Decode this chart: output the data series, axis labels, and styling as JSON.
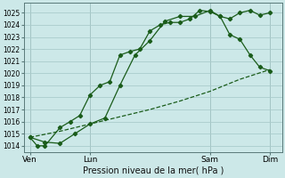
{
  "background_color": "#cce8e8",
  "grid_color": "#aacccc",
  "line_color": "#1a5c1a",
  "title": "Pression niveau de la mer( hPa )",
  "ylim": [
    1013.5,
    1025.8
  ],
  "yticks": [
    1014,
    1015,
    1016,
    1017,
    1018,
    1019,
    1020,
    1021,
    1022,
    1023,
    1024,
    1025
  ],
  "xlim": [
    -0.1,
    4.2
  ],
  "xtick_labels": [
    "Ven",
    "Lun",
    "Sam",
    "Dim"
  ],
  "xtick_positions": [
    0.0,
    1.0,
    3.0,
    4.0
  ],
  "series1_x": [
    0.0,
    0.12,
    0.25,
    0.5,
    0.67,
    0.83,
    1.0,
    1.17,
    1.33,
    1.5,
    1.67,
    1.83,
    2.0,
    2.17,
    2.33,
    2.5,
    2.67,
    2.83,
    3.0,
    3.17,
    3.33,
    3.5,
    3.67,
    3.83,
    4.0
  ],
  "series1_y": [
    1014.7,
    1014.0,
    1014.0,
    1015.5,
    1016.0,
    1016.5,
    1018.2,
    1019.0,
    1019.3,
    1021.5,
    1021.8,
    1022.0,
    1023.5,
    1024.0,
    1024.2,
    1024.2,
    1024.5,
    1025.2,
    1025.1,
    1024.7,
    1024.5,
    1025.0,
    1025.2,
    1024.8,
    1025.0
  ],
  "series2_x": [
    0.0,
    0.5,
    1.0,
    1.5,
    2.0,
    2.5,
    3.0,
    3.5,
    4.0
  ],
  "series2_y": [
    1014.7,
    1015.2,
    1015.8,
    1016.4,
    1017.0,
    1017.7,
    1018.5,
    1019.5,
    1020.3
  ],
  "series3_x": [
    0.0,
    0.25,
    0.5,
    0.75,
    1.0,
    1.25,
    1.5,
    1.75,
    2.0,
    2.25,
    2.5,
    2.75,
    3.0,
    3.17,
    3.33,
    3.5,
    3.67,
    3.83,
    4.0
  ],
  "series3_y": [
    1014.7,
    1014.3,
    1014.2,
    1015.0,
    1015.8,
    1016.3,
    1019.0,
    1021.5,
    1022.7,
    1024.3,
    1024.7,
    1024.7,
    1025.2,
    1024.7,
    1023.2,
    1022.8,
    1021.5,
    1020.5,
    1020.2
  ]
}
